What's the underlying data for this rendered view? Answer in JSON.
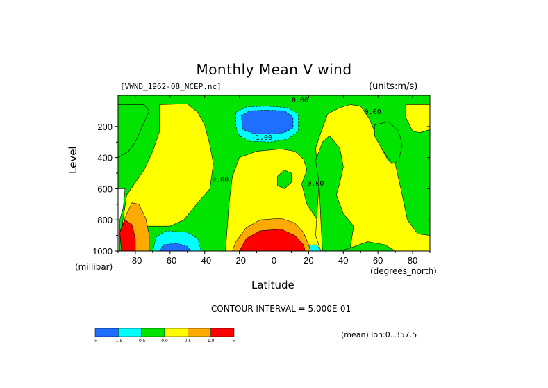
{
  "chart_data": {
    "type": "heatmap",
    "title": "Monthly Mean V wind",
    "dataset": "[VWND_1962-08_NCEP.nc]",
    "units": "(units:m/s)",
    "xlabel": "Latitude",
    "ylabel": "Level",
    "x_unit_label": "(degrees_north)",
    "y_unit_label": "(millibar)",
    "xlim": [
      -90,
      90
    ],
    "ylim": [
      1000,
      0
    ],
    "x_ticks": [
      -80,
      -60,
      -40,
      -20,
      0,
      20,
      40,
      60,
      80
    ],
    "y_ticks": [
      200,
      400,
      600,
      800,
      1000
    ],
    "contour_interval_text": "CONTOUR INTERVAL = 5.000E-01",
    "subtitle_right": "(mean) lon:0..357.5",
    "legend": {
      "colors": [
        "#1e6eff",
        "#00ffff",
        "#00e400",
        "#ffff00",
        "#ffaa00",
        "#ff0000"
      ],
      "labels": [
        "-∞",
        "-1.5",
        "-0.5",
        "0.0",
        "0.5",
        "1.0",
        "∞"
      ]
    },
    "contour_labels": [
      {
        "text": "0.00",
        "x": 15,
        "y": 45
      },
      {
        "text": "0.00",
        "x": 57,
        "y": 120
      },
      {
        "text": "-1.00",
        "x": -7,
        "y": 285
      },
      {
        "text": "0.00",
        "x": -31,
        "y": 555
      },
      {
        "text": "0.00",
        "x": 24,
        "y": 580
      }
    ],
    "fields": [
      {
        "value": "0.0 to 0.5",
        "color": "#ffff00",
        "regions": [
          {
            "name": "southern-subtropics",
            "poly": [
              [
                -88,
                860
              ],
              [
                -85,
                640
              ],
              [
                -80,
                560
              ],
              [
                -75,
                480
              ],
              [
                -70,
                360
              ],
              [
                -66,
                230
              ],
              [
                -66,
                60
              ],
              [
                -50,
                55
              ],
              [
                -44,
                110
              ],
              [
                -40,
                190
              ],
              [
                -37,
                320
              ],
              [
                -35,
                440
              ],
              [
                -37,
                600
              ],
              [
                -44,
                690
              ],
              [
                -52,
                800
              ],
              [
                -60,
                840
              ],
              [
                -74,
                840
              ]
            ]
          },
          {
            "name": "tropics-upper",
            "poly": [
              [
                -28,
                1000
              ],
              [
                -26,
                700
              ],
              [
                -24,
                520
              ],
              [
                -20,
                400
              ],
              [
                -10,
                360
              ],
              [
                4,
                345
              ],
              [
                12,
                360
              ],
              [
                17,
                410
              ],
              [
                19,
                480
              ],
              [
                16,
                570
              ],
              [
                19,
                700
              ],
              [
                25,
                800
              ],
              [
                27,
                1000
              ]
            ]
          },
          {
            "name": "northern-midlatitudes",
            "poly": [
              [
                24,
                900
              ],
              [
                26,
                560
              ],
              [
                24,
                340
              ],
              [
                27,
                240
              ],
              [
                31,
                120
              ],
              [
                38,
                80
              ],
              [
                44,
                60
              ],
              [
                50,
                70
              ],
              [
                55,
                150
              ],
              [
                58,
                230
              ],
              [
                62,
                340
              ],
              [
                66,
                420
              ],
              [
                70,
                440
              ],
              [
                74,
                640
              ],
              [
                77,
                800
              ],
              [
                83,
                890
              ],
              [
                90,
                900
              ],
              [
                90,
                1000
              ],
              [
                70,
                1000
              ],
              [
                64,
                960
              ],
              [
                54,
                940
              ],
              [
                44,
                980
              ],
              [
                38,
                1000
              ],
              [
                27,
                1000
              ]
            ]
          },
          {
            "name": "high-latitude-north-upper",
            "poly": [
              [
                76,
                60
              ],
              [
                90,
                60
              ],
              [
                90,
                220
              ],
              [
                84,
                240
              ],
              [
                80,
                230
              ],
              [
                76,
                140
              ]
            ]
          }
        ]
      },
      {
        "value": "-0.5 to 0.0",
        "color": "#00e400",
        "regions": [
          {
            "name": "southern-polar-upper",
            "poly": [
              [
                -90,
                60
              ],
              [
                -75,
                60
              ],
              [
                -72,
                100
              ],
              [
                -76,
                200
              ],
              [
                -80,
                300
              ],
              [
                -84,
                360
              ],
              [
                -90,
                400
              ]
            ]
          },
          {
            "name": "tropical-lower-patch",
            "poly": [
              [
                2,
                520
              ],
              [
                6,
                480
              ],
              [
                10,
                500
              ],
              [
                10,
                560
              ],
              [
                6,
                600
              ],
              [
                2,
                580
              ]
            ]
          },
          {
            "name": "midlatitude-north-lower",
            "poly": [
              [
                32,
                260
              ],
              [
                38,
                340
              ],
              [
                40,
                460
              ],
              [
                38,
                560
              ],
              [
                36,
                640
              ],
              [
                40,
                760
              ],
              [
                46,
                840
              ],
              [
                44,
                980
              ],
              [
                38,
                1000
              ],
              [
                28,
                1000
              ],
              [
                27,
                800
              ],
              [
                26,
                560
              ],
              [
                24,
                420
              ],
              [
                28,
                300
              ]
            ]
          },
          {
            "name": "high-latitude-north",
            "poly": [
              [
                58,
                190
              ],
              [
                66,
                170
              ],
              [
                72,
                230
              ],
              [
                74,
                320
              ],
              [
                72,
                420
              ],
              [
                68,
                440
              ],
              [
                62,
                340
              ],
              [
                58,
                260
              ]
            ]
          }
        ]
      },
      {
        "value": "-1.5 to -0.5",
        "color": "#00ffff",
        "regions": [
          {
            "name": "upper-jet-south",
            "poly": [
              [
                -22,
                110
              ],
              [
                -16,
                75
              ],
              [
                -4,
                70
              ],
              [
                8,
                80
              ],
              [
                14,
                120
              ],
              [
                14,
                230
              ],
              [
                8,
                280
              ],
              [
                -2,
                300
              ],
              [
                -14,
                295
              ],
              [
                -20,
                260
              ],
              [
                -22,
                200
              ]
            ]
          },
          {
            "name": "lower-southern",
            "poly": [
              [
                -70,
                1000
              ],
              [
                -68,
                910
              ],
              [
                -62,
                870
              ],
              [
                -50,
                880
              ],
              [
                -44,
                920
              ],
              [
                -42,
                1000
              ]
            ]
          },
          {
            "name": "lower-equatorial-north",
            "poly": [
              [
                19,
                1000
              ],
              [
                20,
                960
              ],
              [
                25,
                960
              ],
              [
                27,
                1000
              ]
            ]
          }
        ]
      },
      {
        "value": "< -1.5",
        "color": "#1e6eff",
        "regions": [
          {
            "name": "upper-jet-core",
            "poly": [
              [
                -19,
                130
              ],
              [
                -14,
                100
              ],
              [
                -4,
                95
              ],
              [
                6,
                100
              ],
              [
                11,
                140
              ],
              [
                11,
                210
              ],
              [
                6,
                240
              ],
              [
                -2,
                250
              ],
              [
                -12,
                245
              ],
              [
                -18,
                220
              ]
            ]
          },
          {
            "name": "lower-southern-core",
            "poly": [
              [
                -66,
                1000
              ],
              [
                -64,
                960
              ],
              [
                -56,
                950
              ],
              [
                -50,
                970
              ],
              [
                -48,
                1000
              ]
            ]
          }
        ]
      },
      {
        "value": "0.5 to 1.0",
        "color": "#ffaa00",
        "regions": [
          {
            "name": "lower-tropics",
            "poly": [
              [
                -24,
                1000
              ],
              [
                -22,
                940
              ],
              [
                -16,
                850
              ],
              [
                -8,
                800
              ],
              [
                4,
                790
              ],
              [
                12,
                820
              ],
              [
                17,
                880
              ],
              [
                20,
                960
              ],
              [
                21,
                1000
              ]
            ]
          },
          {
            "name": "southern-polar-lower",
            "poly": [
              [
                -88,
                1000
              ],
              [
                -89,
                880
              ],
              [
                -85,
                760
              ],
              [
                -82,
                690
              ],
              [
                -78,
                700
              ],
              [
                -74,
                790
              ],
              [
                -72,
                900
              ],
              [
                -72,
                1000
              ]
            ]
          }
        ]
      },
      {
        "value": "> 1.0",
        "color": "#ff0000",
        "regions": [
          {
            "name": "lower-tropics-core",
            "poly": [
              [
                -20,
                1000
              ],
              [
                -16,
                920
              ],
              [
                -8,
                870
              ],
              [
                4,
                860
              ],
              [
                12,
                900
              ],
              [
                17,
                960
              ],
              [
                18,
                1000
              ]
            ]
          },
          {
            "name": "southern-polar-core",
            "poly": [
              [
                -88,
                1000
              ],
              [
                -89,
                880
              ],
              [
                -86,
                800
              ],
              [
                -82,
                830
              ],
              [
                -80,
                920
              ],
              [
                -80,
                1000
              ]
            ]
          }
        ]
      },
      {
        "value": "missing",
        "color": "#ffffff",
        "regions": [
          {
            "name": "topography-antarctica",
            "poly": [
              [
                -90,
                1000
              ],
              [
                -90,
                600
              ],
              [
                -86,
                600
              ],
              [
                -87,
                720
              ],
              [
                -89,
                800
              ],
              [
                -89,
                1000
              ]
            ]
          }
        ]
      }
    ]
  }
}
